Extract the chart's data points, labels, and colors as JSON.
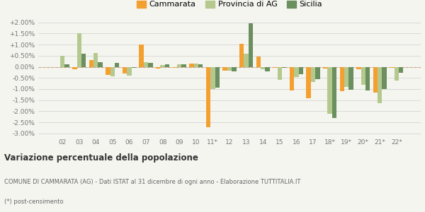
{
  "years": [
    "02",
    "03",
    "04",
    "05",
    "06",
    "07",
    "08",
    "09",
    "10",
    "11*",
    "12",
    "13",
    "14",
    "15",
    "16",
    "17",
    "18*",
    "19*",
    "20*",
    "21*",
    "22*"
  ],
  "cammarata": [
    0.0,
    -0.1,
    0.3,
    -0.37,
    -0.3,
    1.02,
    -0.07,
    -0.05,
    0.13,
    -2.72,
    -0.18,
    1.05,
    0.47,
    -0.03,
    -1.05,
    -1.4,
    -0.08,
    -1.1,
    -0.1,
    -1.15,
    -0.05
  ],
  "provincia_ag": [
    0.5,
    1.5,
    0.62,
    -0.42,
    -0.38,
    0.22,
    0.08,
    0.1,
    0.16,
    -1.0,
    -0.18,
    0.6,
    -0.12,
    -0.6,
    -0.45,
    -0.68,
    -2.1,
    -0.9,
    -0.82,
    -1.65,
    -0.62
  ],
  "sicilia": [
    0.12,
    0.6,
    0.2,
    0.17,
    -0.05,
    0.17,
    0.12,
    0.12,
    0.12,
    -0.95,
    -0.22,
    1.95,
    -0.22,
    -0.04,
    -0.32,
    -0.55,
    -2.32,
    -1.02,
    -1.05,
    -1.0,
    -0.28
  ],
  "color_cammarata": "#f4a030",
  "color_provincia": "#b5c98e",
  "color_sicilia": "#6b8f5e",
  "title_main": "Variazione percentuale della popolazione",
  "subtitle1": "COMUNE DI CAMMARATA (AG) - Dati ISTAT al 31 dicembre di ogni anno - Elaborazione TUTTITALIA.IT",
  "subtitle2": "(*) post-censimento",
  "bg_color": "#f5f5f0",
  "grid_color": "#cccccc",
  "ylim": [
    -3.0,
    2.0
  ],
  "yticks": [
    -3.0,
    -2.5,
    -2.0,
    -1.5,
    -1.0,
    -0.5,
    0.0,
    0.5,
    1.0,
    1.5,
    2.0
  ]
}
